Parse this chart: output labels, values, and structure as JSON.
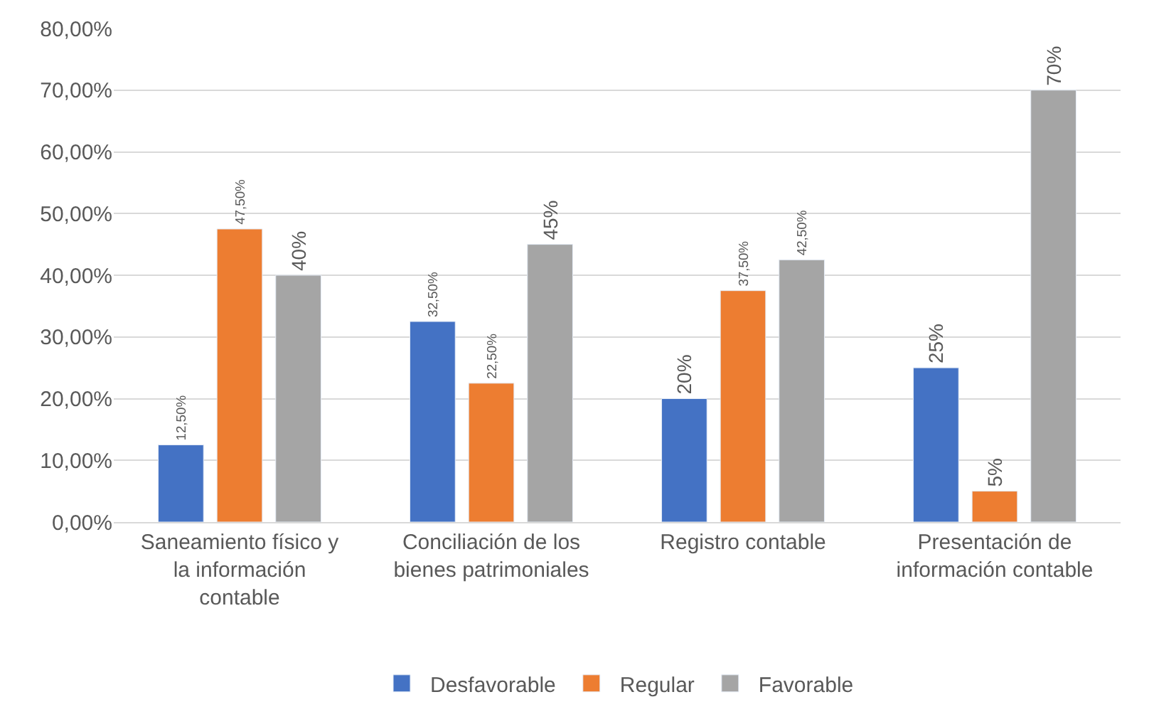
{
  "chart_data": {
    "type": "bar",
    "categories": [
      "Saneamiento físico y la información contable",
      "Conciliación de los bienes patrimoniales",
      "Registro contable",
      "Presentación de información contable"
    ],
    "series": [
      {
        "name": "Desfavorable",
        "color": "#4472c4",
        "values": [
          12.5,
          32.5,
          20,
          25
        ],
        "value_labels": [
          "12,50%",
          "32,50%",
          "20%",
          "25%"
        ]
      },
      {
        "name": "Regular",
        "color": "#ed7d31",
        "values": [
          47.5,
          22.5,
          37.5,
          5
        ],
        "value_labels": [
          "47,50%",
          "22,50%",
          "37,50%",
          "5%"
        ]
      },
      {
        "name": "Favorable",
        "color": "#a5a5a5",
        "values": [
          40,
          45,
          42.5,
          70
        ],
        "value_labels": [
          "40%",
          "45%",
          "42,50%",
          "70%"
        ]
      }
    ],
    "ylim": [
      0,
      80
    ],
    "yticks": [
      {
        "value": 0,
        "label": "0,00%"
      },
      {
        "value": 10,
        "label": "10,00%"
      },
      {
        "value": 20,
        "label": "20,00%"
      },
      {
        "value": 30,
        "label": "30,00%"
      },
      {
        "value": 40,
        "label": "40,00%"
      },
      {
        "value": 50,
        "label": "50,00%"
      },
      {
        "value": 60,
        "label": "60,00%"
      },
      {
        "value": 70,
        "label": "70,00%"
      },
      {
        "value": 80,
        "label": "80,00%"
      }
    ],
    "grid": "y",
    "legend": "bottom"
  }
}
